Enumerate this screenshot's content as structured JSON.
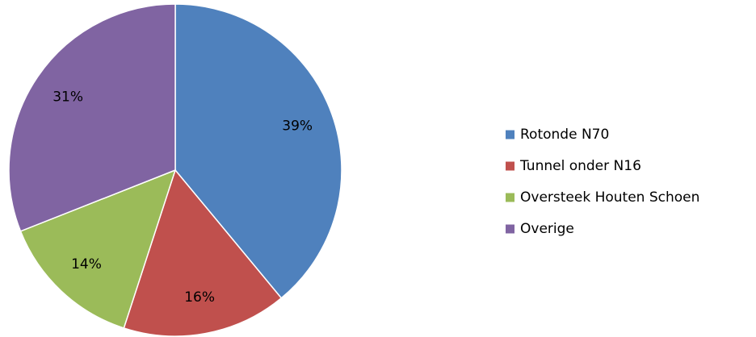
{
  "chart_data": {
    "type": "pie",
    "categories": [
      "Rotonde N70",
      "Tunnel onder N16",
      "Oversteek Houten Schoen",
      "Overige"
    ],
    "values": [
      39,
      16,
      14,
      31
    ],
    "value_labels": [
      "39%",
      "16%",
      "14%",
      "31%"
    ],
    "colors": [
      "#4f81bd",
      "#c0504d",
      "#9bbb59",
      "#8064a2"
    ],
    "legend": "right"
  }
}
